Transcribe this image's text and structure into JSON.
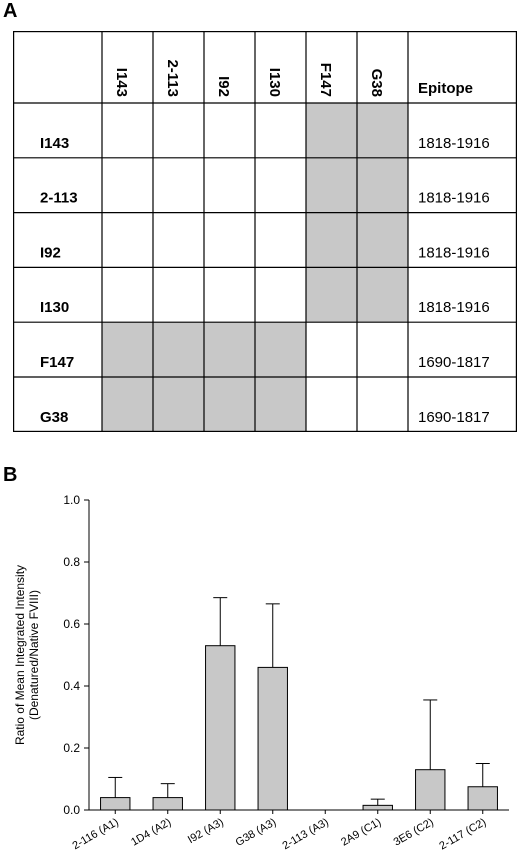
{
  "panel_a": {
    "label": "A",
    "columns": [
      "I143",
      "2-113",
      "I92",
      "I130",
      "F147",
      "G38"
    ],
    "epitope_header": "Epitope",
    "rows": [
      {
        "name": "I143",
        "epitope": "1818-1916",
        "shaded": [
          false,
          false,
          false,
          false,
          true,
          true
        ]
      },
      {
        "name": "2-113",
        "epitope": "1818-1916",
        "shaded": [
          false,
          false,
          false,
          false,
          true,
          true
        ]
      },
      {
        "name": "I92",
        "epitope": "1818-1916",
        "shaded": [
          false,
          false,
          false,
          false,
          true,
          true
        ]
      },
      {
        "name": "I130",
        "epitope": "1818-1916",
        "shaded": [
          false,
          false,
          false,
          false,
          true,
          true
        ]
      },
      {
        "name": "F147",
        "epitope": "1690-1817",
        "shaded": [
          true,
          true,
          true,
          true,
          false,
          false
        ]
      },
      {
        "name": "G38",
        "epitope": "1690-1817",
        "shaded": [
          true,
          true,
          true,
          true,
          false,
          false
        ]
      }
    ],
    "shade_color": "#c8c8c8"
  },
  "panel_b": {
    "label": "B"
  },
  "chart_data": {
    "type": "bar",
    "categories": [
      "2-116 (A1)",
      "1D4 (A2)",
      "I92 (A3)",
      "G38 (A3)",
      "2-113 (A3)",
      "2A9 (C1)",
      "3E6 (C2)",
      "2-117 (C2)"
    ],
    "values": [
      0.04,
      0.04,
      0.53,
      0.46,
      0.0,
      0.015,
      0.13,
      0.075
    ],
    "errors": [
      0.065,
      0.045,
      0.155,
      0.205,
      0.0,
      0.02,
      0.225,
      0.075
    ],
    "ylabel_line1": "Ratio of Mean Integrated Intensity",
    "ylabel_line2": "(Denatured/Native FVIII)",
    "xlabel": "",
    "ylim": [
      0,
      1.0
    ],
    "yticks": [
      "0.0",
      "0.2",
      "0.4",
      "0.6",
      "0.8",
      "1.0"
    ],
    "bar_color": "#c8c8c8",
    "grid": false
  }
}
